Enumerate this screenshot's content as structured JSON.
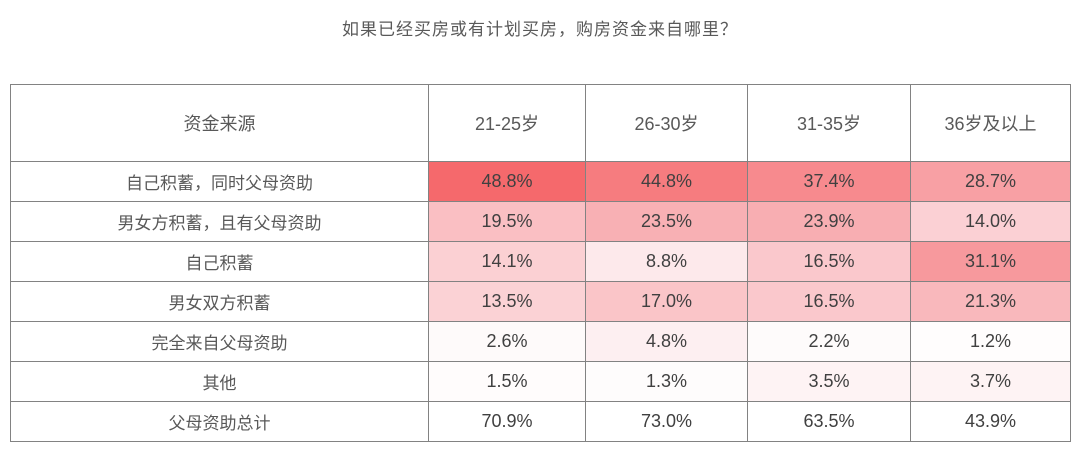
{
  "title": "如果已经买房或有计划买房，购房资金来自哪里？",
  "colors": {
    "heat_high": "#f5696c",
    "heat_low": "#ffffff",
    "border": "#828282",
    "title_text": "#595959",
    "value_text": "#404040"
  },
  "table": {
    "header": [
      "资金来源",
      "21-25岁",
      "26-30岁",
      "31-35岁",
      "36岁及以上"
    ],
    "rows": [
      {
        "label": "自己积蓄，同时父母资助",
        "values": [
          "48.8%",
          "44.8%",
          "37.4%",
          "28.7%"
        ],
        "heat": [
          "#f5696c",
          "#f67c7f",
          "#f78a8e",
          "#f8a0a4"
        ]
      },
      {
        "label": "男女方积蓄，且有父母资助",
        "values": [
          "19.5%",
          "23.5%",
          "23.9%",
          "14.0%"
        ],
        "heat": [
          "#fabfc3",
          "#f8b0b4",
          "#f8aeb2",
          "#fbd0d4"
        ]
      },
      {
        "label": "自己积蓄",
        "values": [
          "14.1%",
          "8.8%",
          "16.5%",
          "31.1%"
        ],
        "heat": [
          "#fbd0d3",
          "#fde9eb",
          "#fac8cc",
          "#f7999d"
        ]
      },
      {
        "label": "男女双方积蓄",
        "values": [
          "13.5%",
          "17.0%",
          "16.5%",
          "21.3%"
        ],
        "heat": [
          "#fbd2d5",
          "#fac5c8",
          "#fac8cc",
          "#f9b8bc"
        ]
      },
      {
        "label": "完全来自父母资助",
        "values": [
          "2.6%",
          "4.8%",
          "2.2%",
          "1.2%"
        ],
        "heat": [
          "#fefafa",
          "#fdeff1",
          "#fefbfb",
          "#fffdfd"
        ]
      },
      {
        "label": "其他",
        "values": [
          "1.5%",
          "1.3%",
          "3.5%",
          "3.7%"
        ],
        "heat": [
          "#fffcfc",
          "#fefcfc",
          "#fef3f4",
          "#fef3f4"
        ]
      },
      {
        "label": "父母资助总计",
        "values": [
          "70.9%",
          "73.0%",
          "63.5%",
          "43.9%"
        ],
        "heat": [
          "#ffffff",
          "#ffffff",
          "#ffffff",
          "#ffffff"
        ]
      }
    ]
  },
  "chart_data": {
    "type": "table",
    "title": "如果已经买房或有计划买房，购房资金来自哪里？",
    "row_label_header": "资金来源",
    "columns": [
      "21-25岁",
      "26-30岁",
      "31-35岁",
      "36岁及以上"
    ],
    "rows": [
      "自己积蓄，同时父母资助",
      "男女方积蓄，且有父母资助",
      "自己积蓄",
      "男女双方积蓄",
      "完全来自父母资助",
      "其他",
      "父母资助总计"
    ],
    "values_percent": [
      [
        48.8,
        44.8,
        37.4,
        28.7
      ],
      [
        19.5,
        23.5,
        23.9,
        14.0
      ],
      [
        14.1,
        8.8,
        16.5,
        31.1
      ],
      [
        13.5,
        17.0,
        16.5,
        21.3
      ],
      [
        2.6,
        4.8,
        2.2,
        1.2
      ],
      [
        1.5,
        1.3,
        3.5,
        3.7
      ],
      [
        70.9,
        73.0,
        63.5,
        43.9
      ]
    ],
    "style_note": "heatmap table, cell shading from white (low %) to coral red (high %), totals row unshaded"
  }
}
